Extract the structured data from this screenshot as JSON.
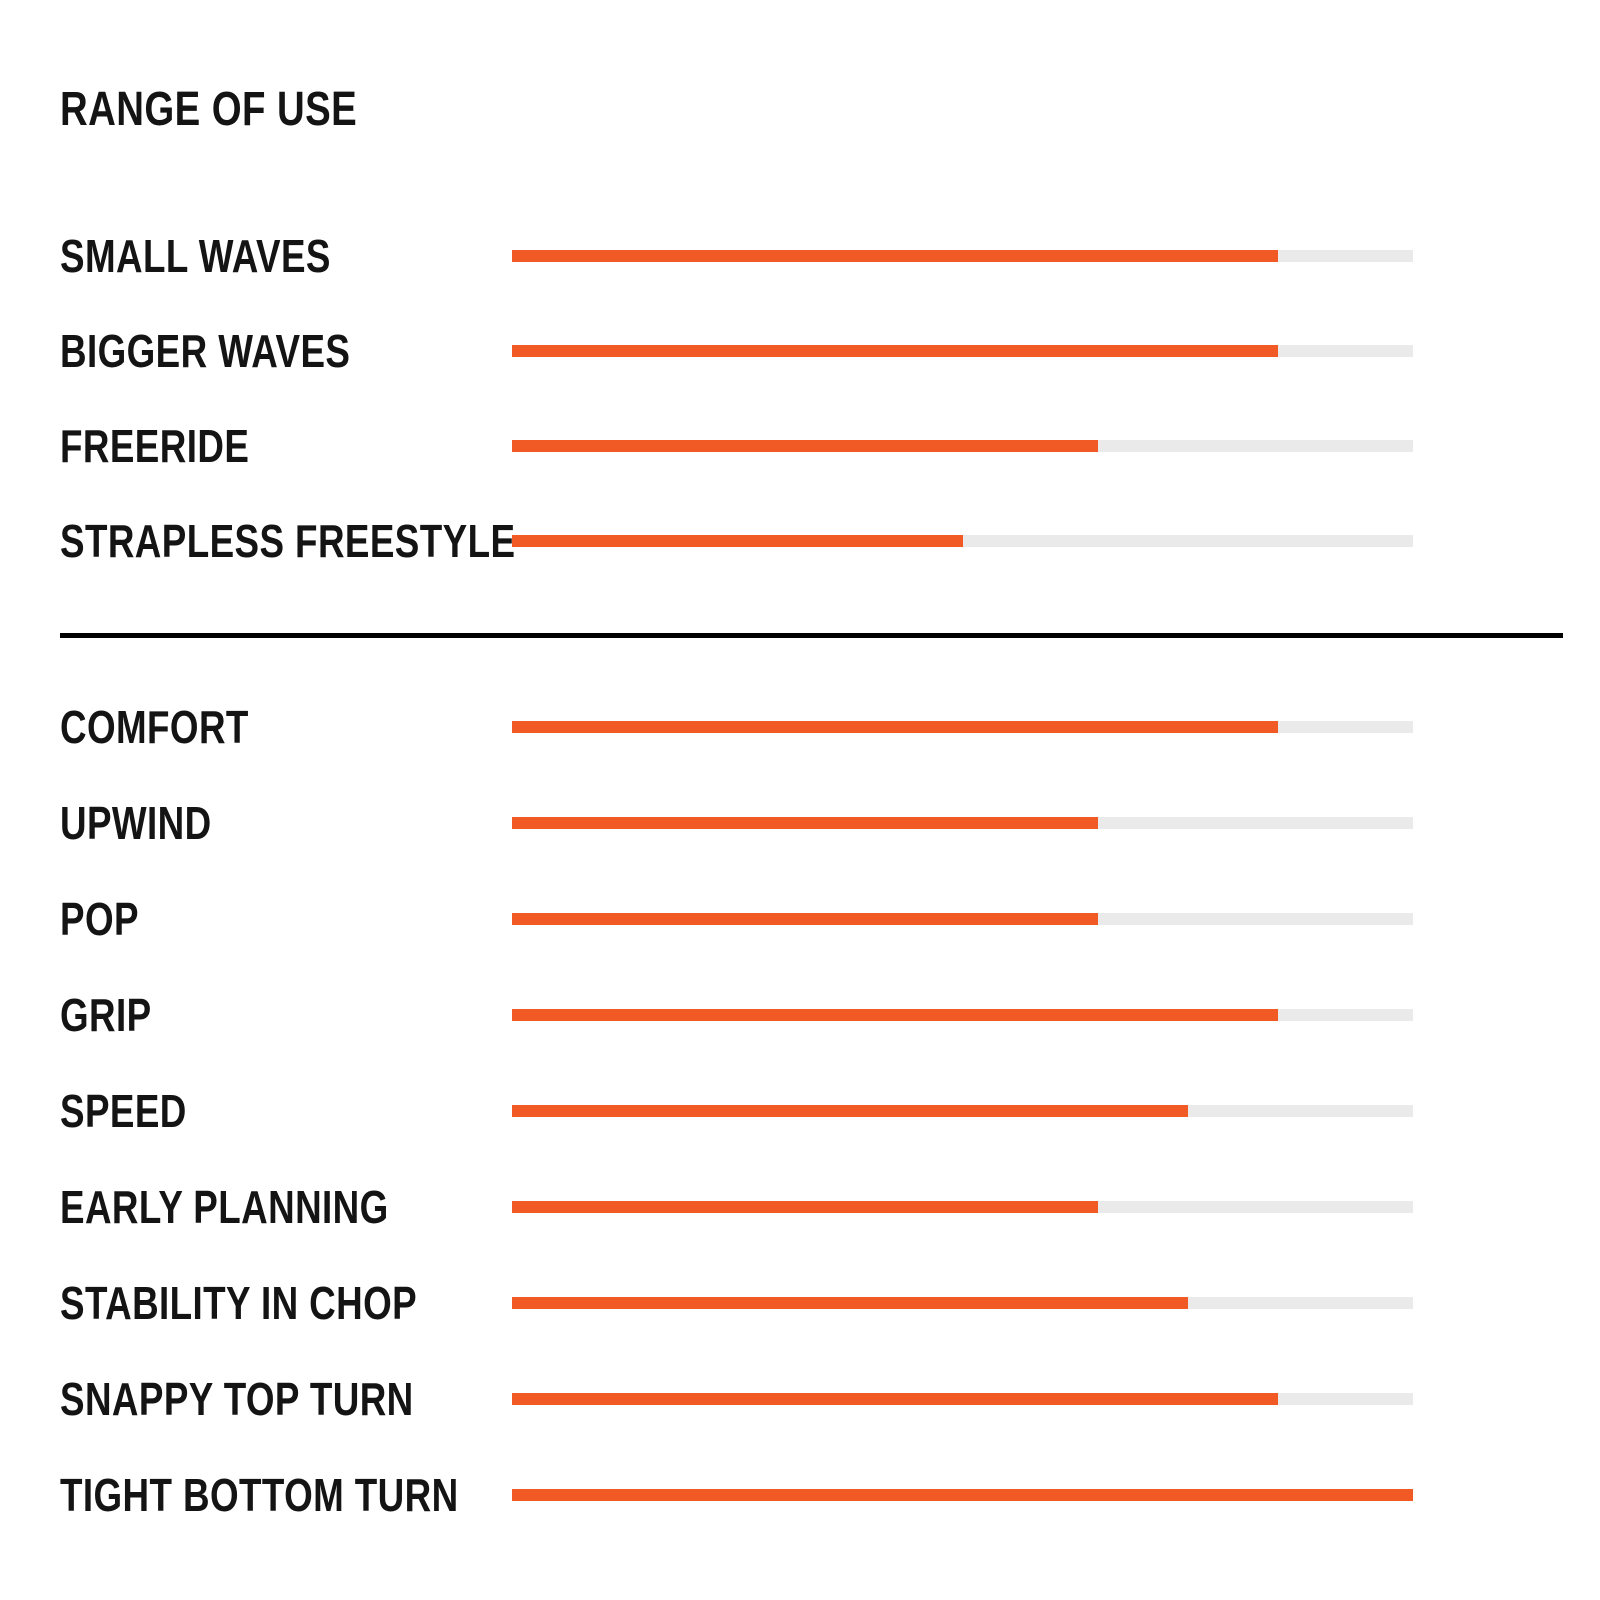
{
  "title": "RANGE OF USE",
  "colors": {
    "fill": "#F15A24",
    "track": "#EAEAEA",
    "text": "#141414",
    "divider": "#000000",
    "background": "#FFFFFF"
  },
  "chart_data": {
    "type": "bar",
    "orientation": "horizontal",
    "title": "RANGE OF USE",
    "xlabel": "",
    "ylabel": "",
    "value_scale": "percent of track filled",
    "xlim": [
      0,
      100
    ],
    "grid": false,
    "legend": false,
    "sections": [
      {
        "name": "range-of-use",
        "rows": [
          {
            "label": "SMALL WAVES",
            "value": 85
          },
          {
            "label": "BIGGER WAVES",
            "value": 85
          },
          {
            "label": "FREERIDE",
            "value": 65
          },
          {
            "label": "STRAPLESS FREESTYLE",
            "value": 50
          }
        ]
      },
      {
        "name": "performance",
        "rows": [
          {
            "label": "COMFORT",
            "value": 85
          },
          {
            "label": "UPWIND",
            "value": 65
          },
          {
            "label": "POP",
            "value": 65
          },
          {
            "label": "GRIP",
            "value": 85
          },
          {
            "label": "SPEED",
            "value": 75
          },
          {
            "label": "EARLY PLANNING",
            "value": 65
          },
          {
            "label": "STABILITY IN CHOP",
            "value": 75
          },
          {
            "label": "SNAPPY TOP TURN",
            "value": 85
          },
          {
            "label": "TIGHT BOTTOM TURN",
            "value": 100
          }
        ]
      }
    ]
  }
}
